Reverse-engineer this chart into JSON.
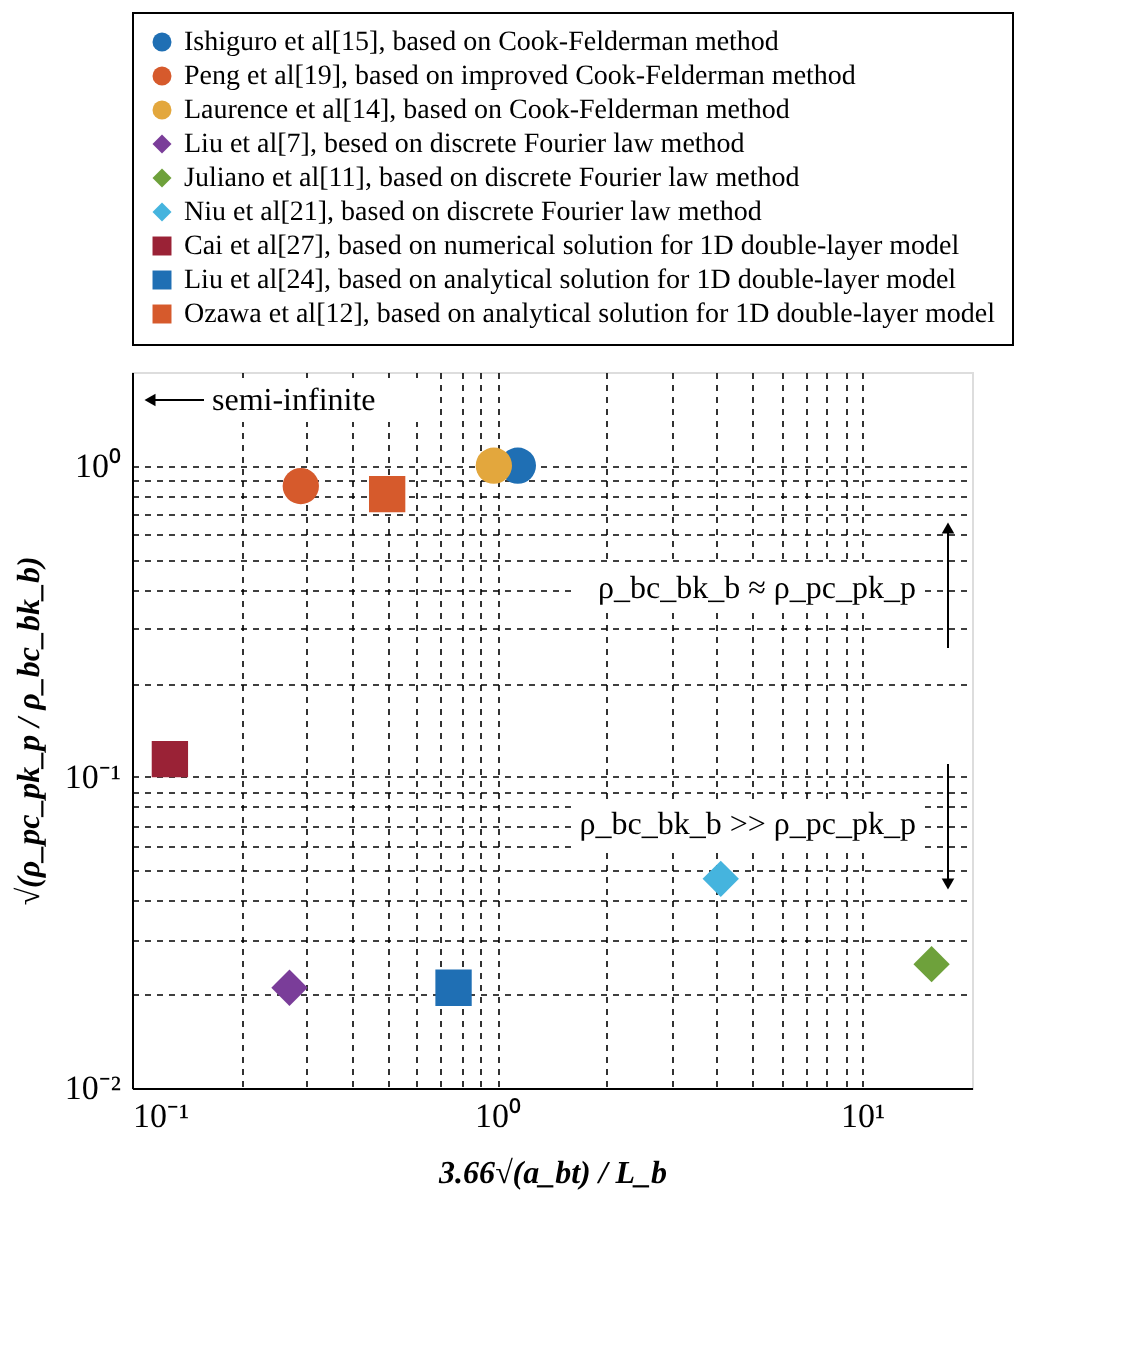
{
  "chart_data": {
    "type": "scatter",
    "xlabel": "3.66√(a_bt) / L_b",
    "ylabel": "√(ρ_pc_pk_p / ρ_bc_bk_b)",
    "series": [
      {
        "name": "Ishiguro et al[15], based on Cook-Felderman method",
        "color": "#1f6fb4",
        "marker": "circle",
        "x": [
          1.14
        ],
        "values": [
          1.0
        ]
      },
      {
        "name": "Peng et al[19], based on improved Cook-Felderman method",
        "color": "#d65a2c",
        "marker": "circle",
        "x": [
          0.29
        ],
        "values": [
          0.86
        ]
      },
      {
        "name": "Laurence et al[14], based on Cook-Felderman method",
        "color": "#e3a73d",
        "marker": "circle",
        "x": [
          0.98
        ],
        "values": [
          1.0
        ]
      },
      {
        "name": "Liu et al[7], besed on discrete Fourier law method",
        "color": "#7a3d99",
        "marker": "diamond",
        "x": [
          0.27
        ],
        "values": [
          0.021
        ]
      },
      {
        "name": "Juliano et al[11], based on discrete Fourier law method",
        "color": "#6ea13b",
        "marker": "diamond",
        "x": [
          15.5
        ],
        "values": [
          0.025
        ]
      },
      {
        "name": "Niu et al[21], based on discrete Fourier law method",
        "color": "#45b4de",
        "marker": "diamond",
        "x": [
          4.1
        ],
        "values": [
          0.047
        ]
      },
      {
        "name": "Cai et al[27], based on numerical solution for 1D double-layer model",
        "color": "#9a2236",
        "marker": "square",
        "x": [
          0.127
        ],
        "values": [
          0.114
        ]
      },
      {
        "name": "Liu et al[24], based on analytical solution for 1D double-layer model",
        "color": "#1f6fb4",
        "marker": "square",
        "x": [
          0.76
        ],
        "values": [
          0.021
        ]
      },
      {
        "name": "Ozawa et al[12], based on analytical solution for 1D double-layer model",
        "color": "#d65a2c",
        "marker": "square",
        "x": [
          0.5
        ],
        "values": [
          0.81
        ]
      }
    ],
    "log": "xy",
    "xlim": [
      0.1,
      20
    ],
    "ylim": [
      0.01,
      2
    ],
    "xticks": [
      {
        "value": 0.1,
        "label": "10⁻¹"
      },
      {
        "value": 0.2,
        "label": null
      },
      {
        "value": 0.3,
        "label": null
      },
      {
        "value": 0.4,
        "label": null
      },
      {
        "value": 0.5,
        "label": null
      },
      {
        "value": 0.6,
        "label": null
      },
      {
        "value": 0.7,
        "label": null
      },
      {
        "value": 0.8,
        "label": null
      },
      {
        "value": 0.9,
        "label": null
      },
      {
        "value": 1,
        "label": "10⁰"
      },
      {
        "value": 2,
        "label": null
      },
      {
        "value": 3,
        "label": null
      },
      {
        "value": 4,
        "label": null
      },
      {
        "value": 5,
        "label": null
      },
      {
        "value": 6,
        "label": null
      },
      {
        "value": 7,
        "label": null
      },
      {
        "value": 8,
        "label": null
      },
      {
        "value": 9,
        "label": null
      },
      {
        "value": 10,
        "label": "10¹"
      }
    ],
    "yticks": [
      {
        "value": 0.01,
        "label": "10⁻²"
      },
      {
        "value": 0.02,
        "label": null
      },
      {
        "value": 0.03,
        "label": null
      },
      {
        "value": 0.04,
        "label": null
      },
      {
        "value": 0.05,
        "label": null
      },
      {
        "value": 0.06,
        "label": null
      },
      {
        "value": 0.07,
        "label": null
      },
      {
        "value": 0.08,
        "label": null
      },
      {
        "value": 0.09,
        "label": null
      },
      {
        "value": 0.1,
        "label": "10⁻¹"
      },
      {
        "value": 0.2,
        "label": null
      },
      {
        "value": 0.3,
        "label": null
      },
      {
        "value": 0.4,
        "label": null
      },
      {
        "value": 0.5,
        "label": null
      },
      {
        "value": 0.6,
        "label": null
      },
      {
        "value": 0.7,
        "label": null
      },
      {
        "value": 0.8,
        "label": null
      },
      {
        "value": 0.9,
        "label": null
      },
      {
        "value": 1,
        "label": "10⁰"
      }
    ],
    "grid": true,
    "legend": "top",
    "annotations": [
      "semi-infinite",
      "ρ_bc_bk_b ≈ ρ_pc_pk_p",
      "ρ_bc_bk_b >> ρ_pc_pk_p"
    ]
  }
}
